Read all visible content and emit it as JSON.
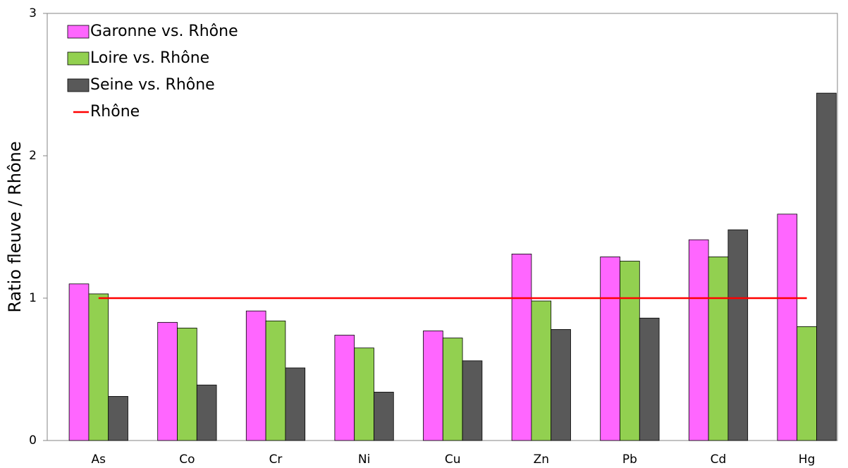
{
  "chart_data": {
    "type": "bar",
    "y_label": "Ratio fleuve / Rhône",
    "categories": [
      "As",
      "Co",
      "Cr",
      "Ni",
      "Cu",
      "Zn",
      "Pb",
      "Cd",
      "Hg"
    ],
    "series": [
      {
        "name": "Garonne vs. Rhône",
        "color": "#ff66ff",
        "values": [
          1.1,
          0.83,
          0.91,
          0.74,
          0.77,
          1.31,
          1.29,
          1.41,
          1.59
        ]
      },
      {
        "name": "Loire vs. Rhône",
        "color": "#92d050",
        "values": [
          1.03,
          0.79,
          0.84,
          0.65,
          0.72,
          0.98,
          1.26,
          1.29,
          0.8
        ]
      },
      {
        "name": "Seine vs. Rhône",
        "color": "#595959",
        "values": [
          0.31,
          0.39,
          0.51,
          0.34,
          0.56,
          0.78,
          0.86,
          1.48,
          2.44
        ]
      },
      {
        "name": "Rhône",
        "color": "#ff0000",
        "type": "line",
        "values": [
          1,
          1,
          1,
          1,
          1,
          1,
          1,
          1,
          1
        ]
      }
    ],
    "ylim": [
      0,
      3
    ],
    "yticks": [
      0,
      1,
      2,
      3
    ],
    "grid": false,
    "legend": "top-left"
  }
}
